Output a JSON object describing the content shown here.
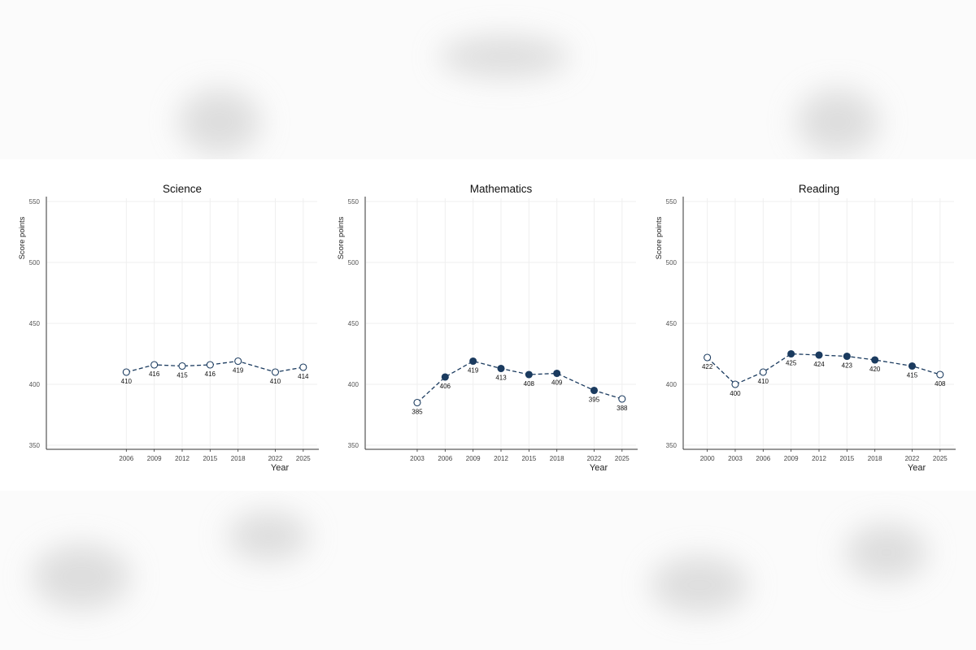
{
  "colors": {
    "series": "#1b3b5f",
    "open_fill": "#ffffff",
    "grid": "#efefef",
    "axis": "#333333"
  },
  "chart_data": [
    {
      "type": "line",
      "title": "Science",
      "xlabel": "Year",
      "ylabel": "Score points",
      "ylim": [
        350,
        550
      ],
      "yticks": [
        350,
        400,
        450,
        500,
        550
      ],
      "x": [
        2006,
        2009,
        2012,
        2015,
        2018,
        2022,
        2025
      ],
      "values": [
        410,
        416,
        415,
        416,
        419,
        410,
        414
      ],
      "filled": [
        false,
        false,
        false,
        false,
        false,
        false,
        false
      ],
      "grid": true,
      "line_style": "dashed"
    },
    {
      "type": "line",
      "title": "Mathematics",
      "xlabel": "Year",
      "ylabel": "Score points",
      "ylim": [
        350,
        550
      ],
      "yticks": [
        350,
        400,
        450,
        500,
        550
      ],
      "x": [
        2003,
        2006,
        2009,
        2012,
        2015,
        2018,
        2022,
        2025
      ],
      "values": [
        385,
        406,
        419,
        413,
        408,
        409,
        395,
        388
      ],
      "filled": [
        false,
        true,
        true,
        true,
        true,
        true,
        true,
        false
      ],
      "grid": true,
      "line_style": "dashed"
    },
    {
      "type": "line",
      "title": "Reading",
      "xlabel": "Year",
      "ylabel": "Score points",
      "ylim": [
        350,
        550
      ],
      "yticks": [
        350,
        400,
        450,
        500,
        550
      ],
      "x": [
        2000,
        2003,
        2006,
        2009,
        2012,
        2015,
        2018,
        2022,
        2025
      ],
      "values": [
        422,
        400,
        410,
        425,
        424,
        423,
        420,
        415,
        408
      ],
      "filled": [
        false,
        false,
        false,
        true,
        true,
        true,
        true,
        true,
        false
      ],
      "grid": true,
      "line_style": "dashed"
    }
  ]
}
